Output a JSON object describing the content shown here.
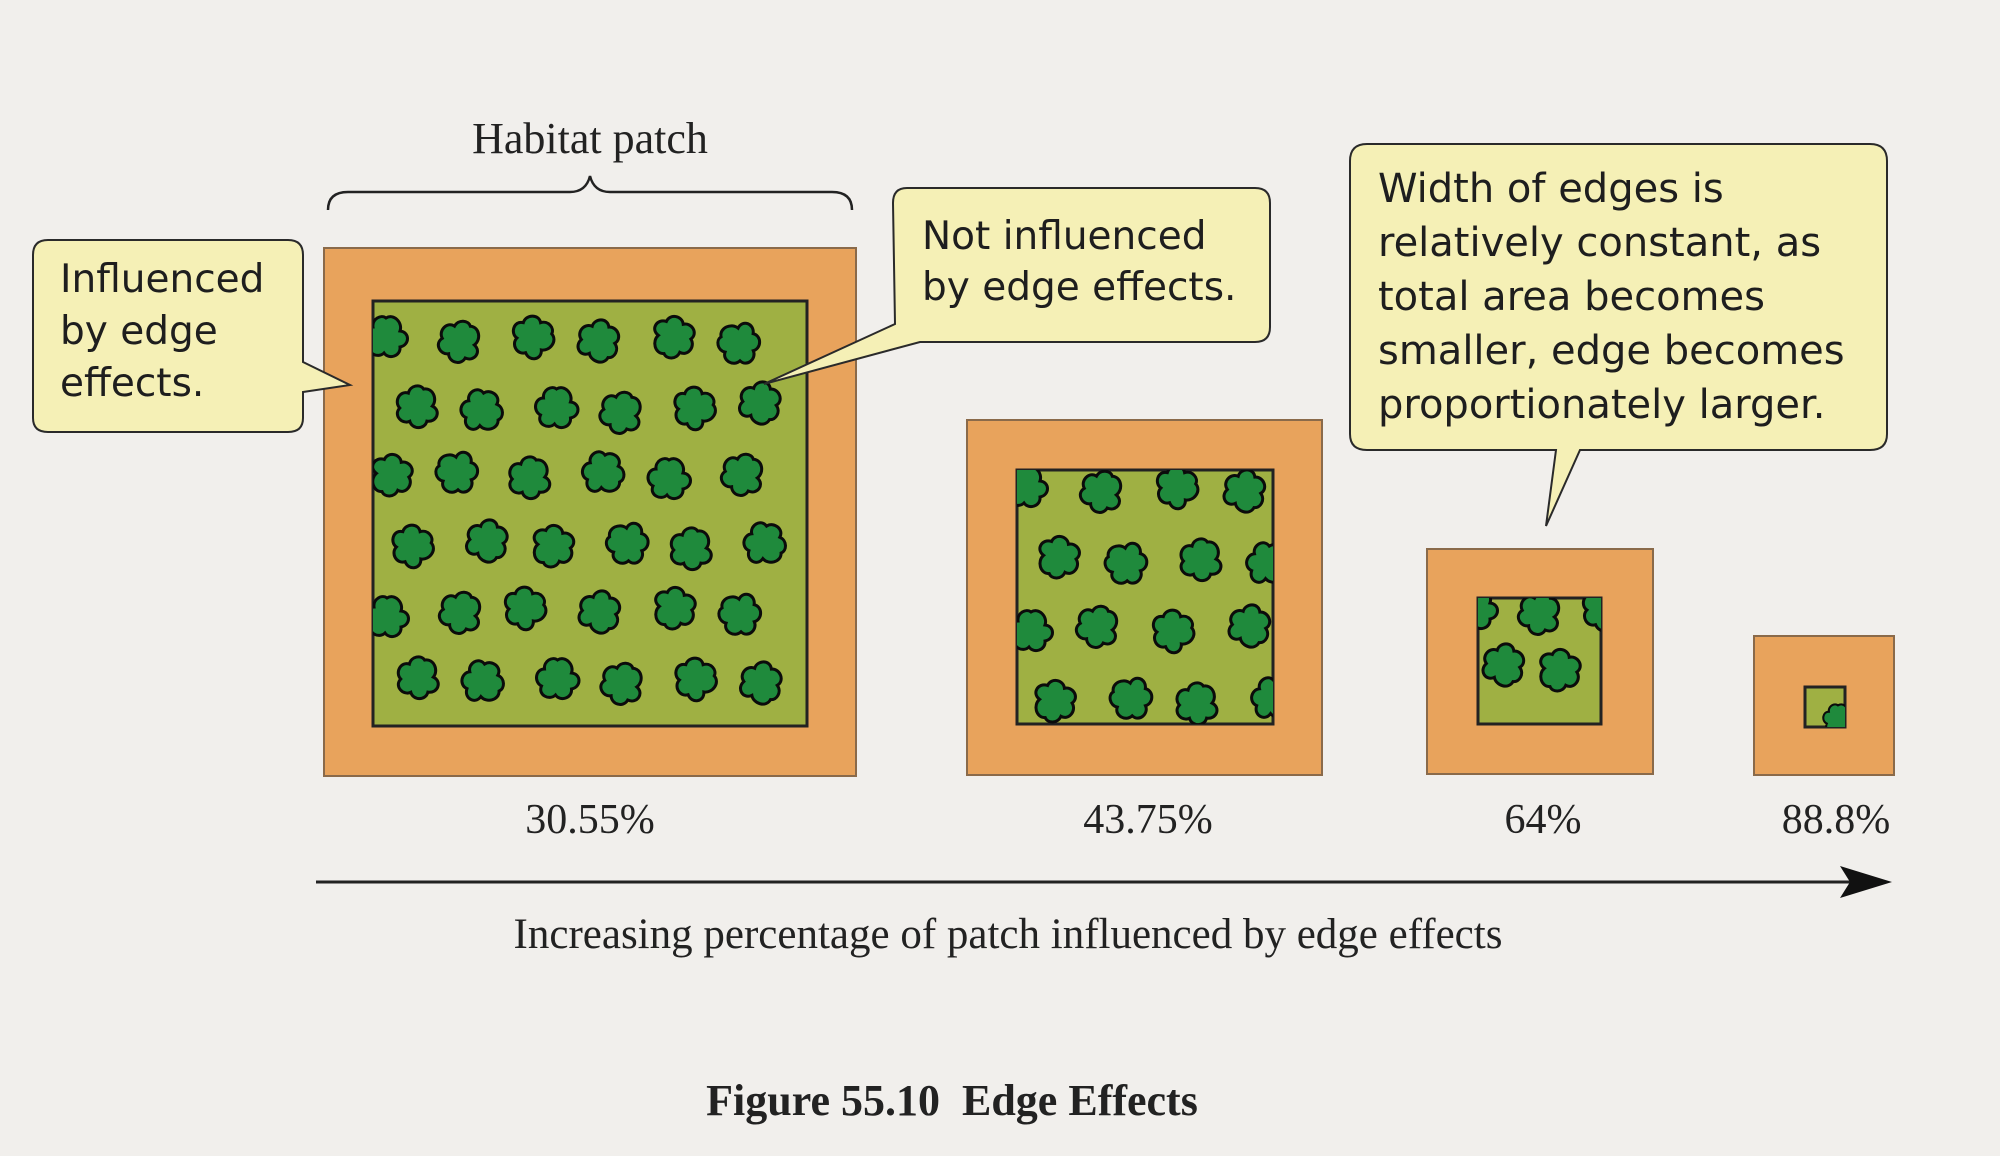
{
  "colors": {
    "background": "#f1efec",
    "edge_zone": "#e8a35c",
    "core_zone": "#9fb043",
    "blob_fill": "#1f8a3c",
    "callout_fill": "#f5f0b6",
    "text": "#222222"
  },
  "habitat_label": "Habitat patch",
  "callouts": {
    "influenced": [
      "Influenced",
      "by edge",
      "effects."
    ],
    "not_influenced": [
      "Not influenced",
      "by edge effects."
    ],
    "width": [
      "Width of edges is",
      "relatively constant, as",
      "total area becomes",
      "smaller, edge becomes",
      "proportionately larger."
    ]
  },
  "patches": [
    {
      "percent_label": "30.55%",
      "edge_influenced_pct": 30.55
    },
    {
      "percent_label": "43.75%",
      "edge_influenced_pct": 43.75
    },
    {
      "percent_label": "64%",
      "edge_influenced_pct": 64
    },
    {
      "percent_label": "88.8%",
      "edge_influenced_pct": 88.8
    }
  ],
  "arrow_label": "Increasing percentage of patch influenced by edge effects",
  "caption": "Figure 55.10  Edge Effects"
}
